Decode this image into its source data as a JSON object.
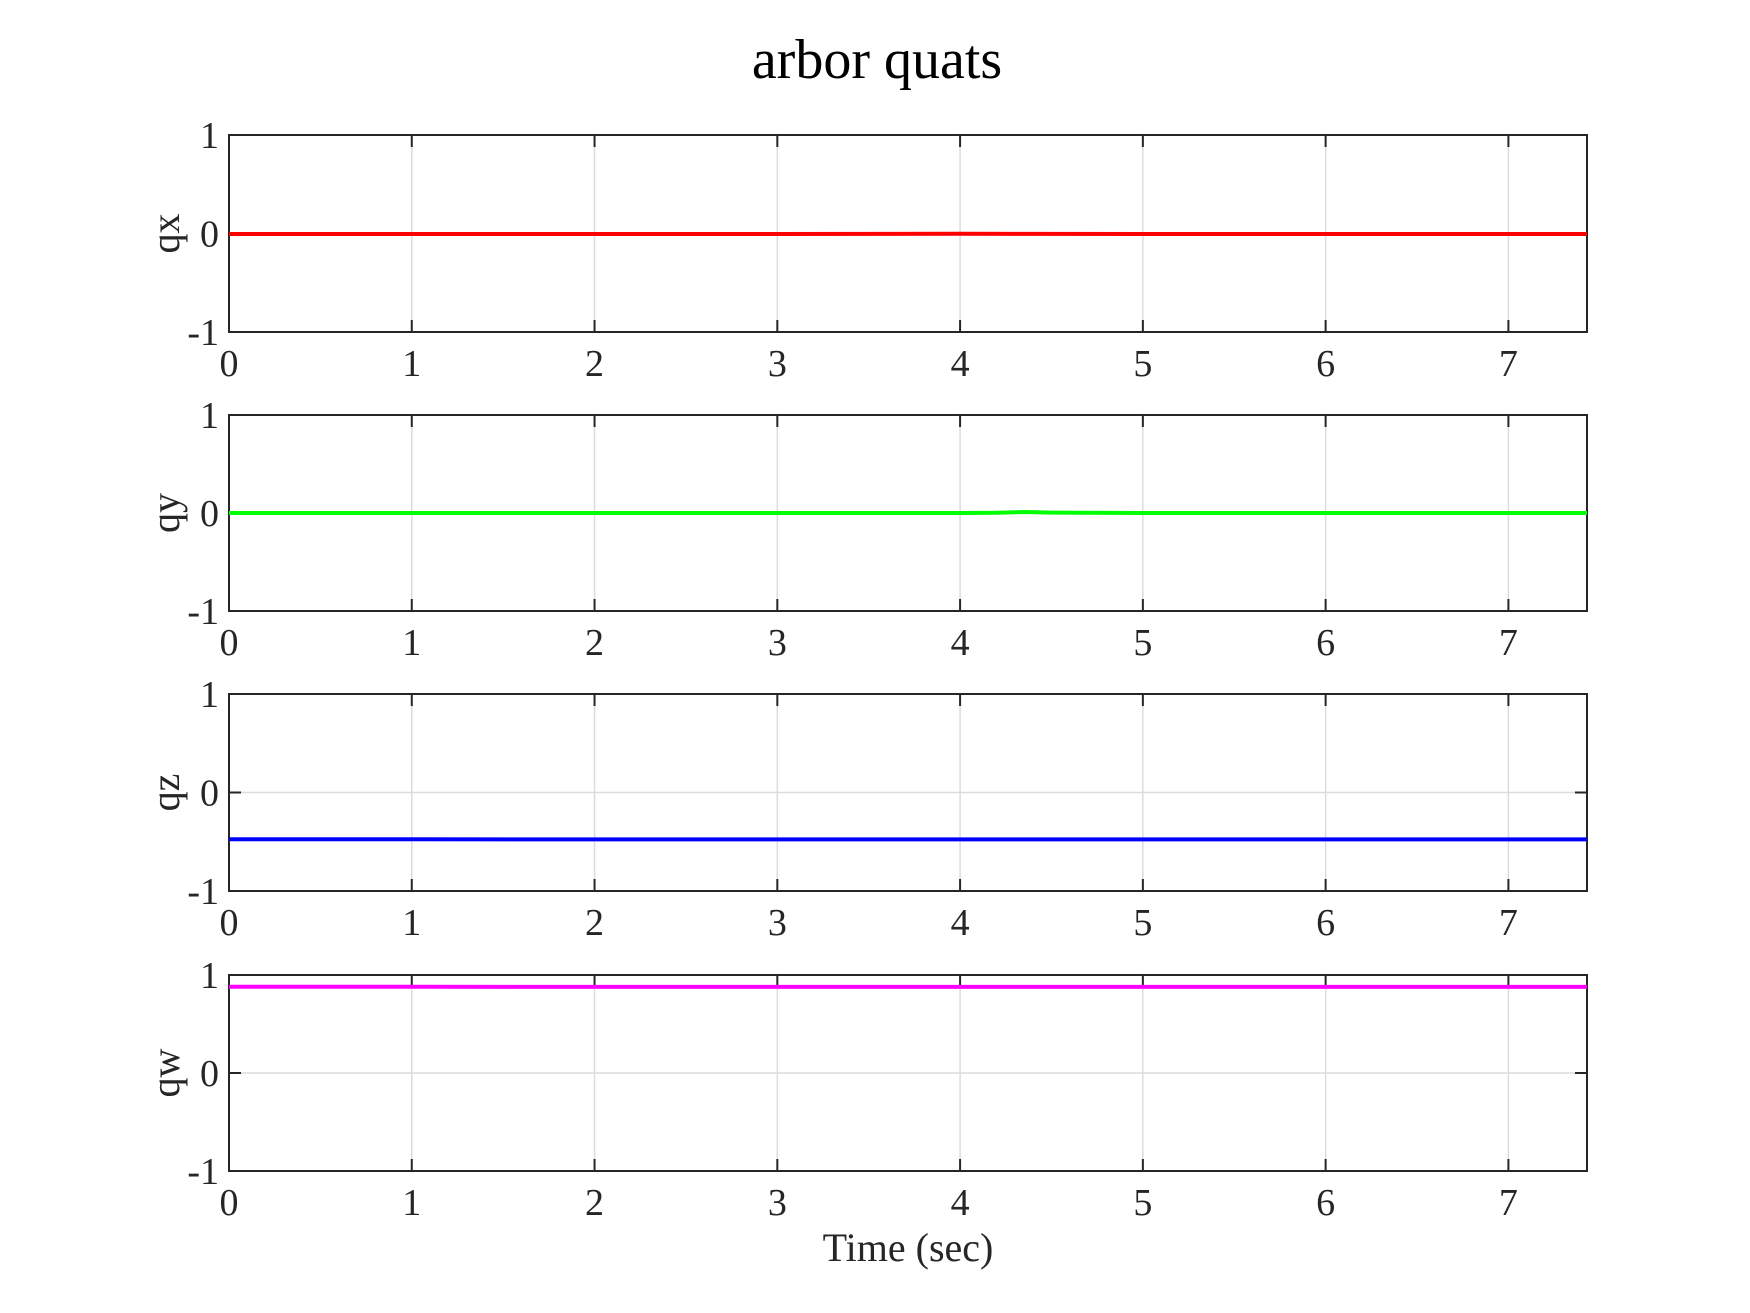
{
  "chart_data": [
    {
      "type": "line",
      "title": "arbor quats",
      "xlabel": "",
      "ylabel": "qx",
      "xlim": [
        0,
        7.43
      ],
      "ylim": [
        -1,
        1
      ],
      "xticks": [
        "0",
        "1",
        "2",
        "3",
        "4",
        "5",
        "6",
        "7"
      ],
      "yticks": [
        "-1",
        "0",
        "1"
      ],
      "grid": true,
      "series": [
        {
          "color": "#ff0000",
          "x": [
            0,
            1,
            2,
            3,
            3.6,
            4,
            4.4,
            5,
            6,
            7,
            7.43
          ],
          "y": [
            -0.005,
            -0.005,
            -0.005,
            -0.005,
            -0.004,
            -0.003,
            -0.004,
            -0.005,
            -0.005,
            -0.005,
            -0.005
          ]
        }
      ]
    },
    {
      "type": "line",
      "title": "",
      "xlabel": "",
      "ylabel": "qy",
      "xlim": [
        0,
        7.43
      ],
      "ylim": [
        -1,
        1
      ],
      "xticks": [
        "0",
        "1",
        "2",
        "3",
        "4",
        "5",
        "6",
        "7"
      ],
      "yticks": [
        "-1",
        "0",
        "1"
      ],
      "grid": true,
      "series": [
        {
          "color": "#00ff00",
          "x": [
            0,
            1,
            2,
            3,
            4,
            4.2,
            4.35,
            4.5,
            5,
            6,
            7,
            7.43
          ],
          "y": [
            0.0,
            0.0,
            0.0,
            0.0,
            0.0,
            0.002,
            0.01,
            0.004,
            0.0,
            0.0,
            0.0,
            0.0
          ]
        }
      ]
    },
    {
      "type": "line",
      "title": "",
      "xlabel": "",
      "ylabel": "qz",
      "xlim": [
        0,
        7.43
      ],
      "ylim": [
        -1,
        1
      ],
      "xticks": [
        "0",
        "1",
        "2",
        "3",
        "4",
        "5",
        "6",
        "7"
      ],
      "yticks": [
        "-1",
        "0",
        "1"
      ],
      "grid": true,
      "series": [
        {
          "color": "#0000ff",
          "x": [
            0,
            1,
            2,
            3,
            4,
            5,
            6,
            7,
            7.43
          ],
          "y": [
            -0.475,
            -0.475,
            -0.476,
            -0.476,
            -0.476,
            -0.476,
            -0.476,
            -0.476,
            -0.476
          ]
        }
      ]
    },
    {
      "type": "line",
      "title": "",
      "xlabel": "Time (sec)",
      "ylabel": "qw",
      "xlim": [
        0,
        7.43
      ],
      "ylim": [
        -1,
        1
      ],
      "xticks": [
        "0",
        "1",
        "2",
        "3",
        "4",
        "5",
        "6",
        "7"
      ],
      "yticks": [
        "-1",
        "0",
        "1"
      ],
      "grid": true,
      "series": [
        {
          "color": "#ff00ff",
          "x": [
            0,
            1,
            2,
            3,
            4,
            5,
            6,
            7,
            7.43
          ],
          "y": [
            0.88,
            0.88,
            0.879,
            0.879,
            0.879,
            0.879,
            0.879,
            0.879,
            0.879
          ]
        }
      ]
    }
  ]
}
